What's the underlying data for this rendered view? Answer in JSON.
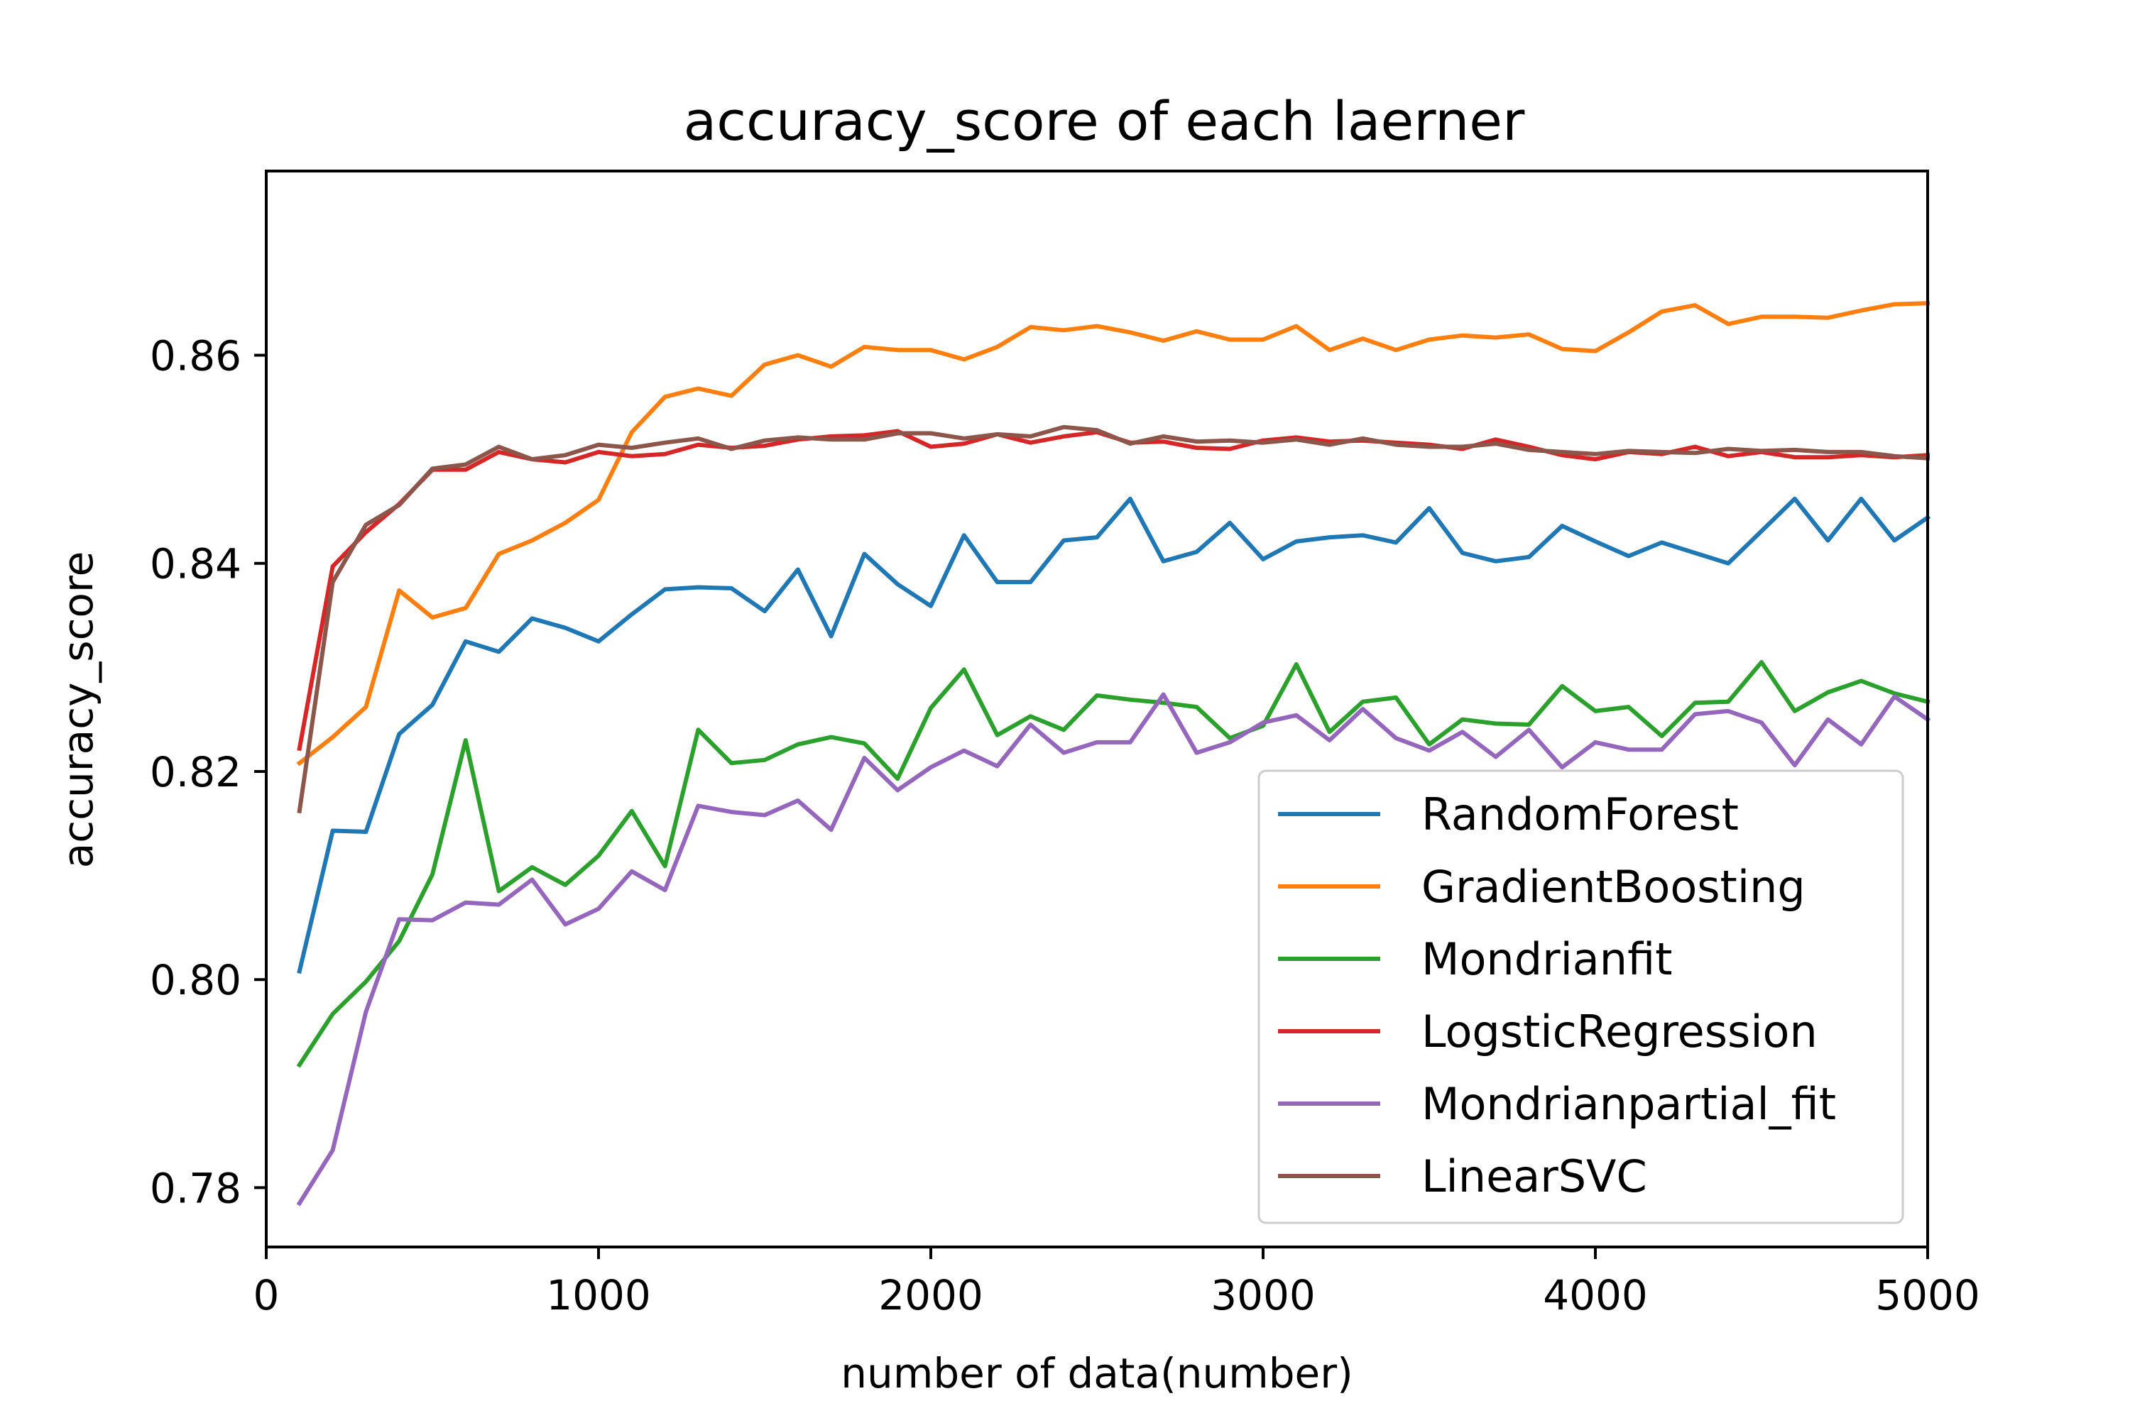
{
  "chart_data": {
    "type": "line",
    "title": "accuracy_score of each laerner",
    "xlabel": "number of data(number)",
    "ylabel": "accuracy_score",
    "xlim": [
      0,
      5000
    ],
    "ylim": [
      0.7743,
      0.8777
    ],
    "x_ticks": [
      0,
      1000,
      2000,
      3000,
      4000,
      5000
    ],
    "x_tick_labels": [
      "0",
      "1000",
      "2000",
      "3000",
      "4000",
      "5000"
    ],
    "y_ticks": [
      0.78,
      0.8,
      0.82,
      0.84,
      0.86
    ],
    "y_tick_labels": [
      "0.78",
      "0.80",
      "0.82",
      "0.84",
      "0.86"
    ],
    "grid": false,
    "legend_position": "lower-right",
    "x": [
      100,
      200,
      300,
      400,
      500,
      600,
      700,
      800,
      900,
      1000,
      1100,
      1200,
      1300,
      1400,
      1500,
      1600,
      1700,
      1800,
      1900,
      2000,
      2100,
      2200,
      2300,
      2400,
      2500,
      2600,
      2700,
      2800,
      2900,
      3000,
      3100,
      3200,
      3300,
      3400,
      3500,
      3600,
      3700,
      3800,
      3900,
      4000,
      4100,
      4200,
      4300,
      4400,
      4500,
      4600,
      4700,
      4800,
      4900,
      5000
    ],
    "series": [
      {
        "name": "RandomForest",
        "color": "#1f77b4",
        "values": [
          0.8008,
          0.8143,
          0.8142,
          0.8236,
          0.8264,
          0.8325,
          0.8315,
          0.8347,
          0.8338,
          0.8325,
          0.8351,
          0.8375,
          0.8377,
          0.8376,
          0.8354,
          0.8394,
          0.833,
          0.8409,
          0.838,
          0.8359,
          0.8427,
          0.8382,
          0.8382,
          0.8422,
          0.8425,
          0.8462,
          0.8402,
          0.8411,
          0.8439,
          0.8404,
          0.8421,
          0.8425,
          0.8427,
          0.842,
          0.8453,
          0.841,
          0.8402,
          0.8406,
          0.8436,
          0.8421,
          0.8407,
          0.842,
          0.841,
          0.84,
          0.8431,
          0.8462,
          0.8422,
          0.8462,
          0.8422,
          0.8444
        ]
      },
      {
        "name": "GradientBoosting",
        "color": "#ff7f0e",
        "values": [
          0.8208,
          0.8233,
          0.8262,
          0.8374,
          0.8348,
          0.8357,
          0.8409,
          0.8422,
          0.8439,
          0.8461,
          0.8526,
          0.856,
          0.8568,
          0.8561,
          0.8591,
          0.86,
          0.8589,
          0.8608,
          0.8605,
          0.8605,
          0.8596,
          0.8608,
          0.8627,
          0.8624,
          0.8628,
          0.8622,
          0.8614,
          0.8623,
          0.8615,
          0.8615,
          0.8628,
          0.8605,
          0.8616,
          0.8605,
          0.8615,
          0.8619,
          0.8617,
          0.862,
          0.8606,
          0.8604,
          0.8622,
          0.8642,
          0.8648,
          0.863,
          0.8637,
          0.8637,
          0.8636,
          0.8643,
          0.8649,
          0.865
        ]
      },
      {
        "name": "Mondrianfit",
        "color": "#2ca02c",
        "values": [
          0.7918,
          0.7967,
          0.7998,
          0.8037,
          0.8101,
          0.823,
          0.8085,
          0.8108,
          0.8091,
          0.8119,
          0.8162,
          0.8109,
          0.824,
          0.8208,
          0.8211,
          0.8226,
          0.8233,
          0.8227,
          0.8193,
          0.8261,
          0.8298,
          0.8235,
          0.8253,
          0.824,
          0.8273,
          0.8269,
          0.8266,
          0.8262,
          0.8232,
          0.8244,
          0.8303,
          0.8238,
          0.8267,
          0.8271,
          0.8226,
          0.825,
          0.8246,
          0.8245,
          0.8282,
          0.8258,
          0.8262,
          0.8234,
          0.8266,
          0.8267,
          0.8305,
          0.8258,
          0.8276,
          0.8287,
          0.8275,
          0.8267
        ]
      },
      {
        "name": "LogsticRegression",
        "color": "#d62728",
        "values": [
          0.8222,
          0.8397,
          0.843,
          0.8457,
          0.849,
          0.849,
          0.8507,
          0.85,
          0.8497,
          0.8507,
          0.8503,
          0.8505,
          0.8514,
          0.8511,
          0.8513,
          0.8519,
          0.8522,
          0.8523,
          0.8527,
          0.8512,
          0.8515,
          0.8524,
          0.8516,
          0.8522,
          0.8526,
          0.8516,
          0.8517,
          0.8511,
          0.851,
          0.8518,
          0.8521,
          0.8517,
          0.8518,
          0.8516,
          0.8514,
          0.851,
          0.8519,
          0.8512,
          0.8504,
          0.85,
          0.8507,
          0.8505,
          0.8512,
          0.8503,
          0.8507,
          0.8502,
          0.8502,
          0.8504,
          0.8502,
          0.8504
        ]
      },
      {
        "name": "Mondrianpartial_fit",
        "color": "#9467bd",
        "values": [
          0.7785,
          0.7836,
          0.7969,
          0.8058,
          0.8057,
          0.8074,
          0.8072,
          0.8096,
          0.8053,
          0.8068,
          0.8104,
          0.8086,
          0.8167,
          0.8161,
          0.8158,
          0.8172,
          0.8144,
          0.8213,
          0.8182,
          0.8204,
          0.822,
          0.8205,
          0.8245,
          0.8218,
          0.8228,
          0.8228,
          0.8274,
          0.8218,
          0.8228,
          0.8247,
          0.8254,
          0.823,
          0.826,
          0.8232,
          0.822,
          0.8238,
          0.8214,
          0.824,
          0.8204,
          0.8228,
          0.8221,
          0.8221,
          0.8255,
          0.8258,
          0.8247,
          0.8206,
          0.825,
          0.8226,
          0.8272,
          0.825
        ]
      },
      {
        "name": "LinearSVC",
        "color": "#8c564b",
        "values": [
          0.8162,
          0.8382,
          0.8437,
          0.8456,
          0.8491,
          0.8495,
          0.8512,
          0.85,
          0.8504,
          0.8514,
          0.8511,
          0.8516,
          0.852,
          0.851,
          0.8518,
          0.8521,
          0.8519,
          0.8519,
          0.8525,
          0.8525,
          0.852,
          0.8524,
          0.8522,
          0.8531,
          0.8528,
          0.8515,
          0.8522,
          0.8517,
          0.8518,
          0.8516,
          0.8519,
          0.8514,
          0.852,
          0.8514,
          0.8512,
          0.8512,
          0.8515,
          0.8509,
          0.8507,
          0.8505,
          0.8508,
          0.8507,
          0.8506,
          0.851,
          0.8508,
          0.8509,
          0.8507,
          0.8507,
          0.8503,
          0.8501
        ]
      }
    ]
  }
}
